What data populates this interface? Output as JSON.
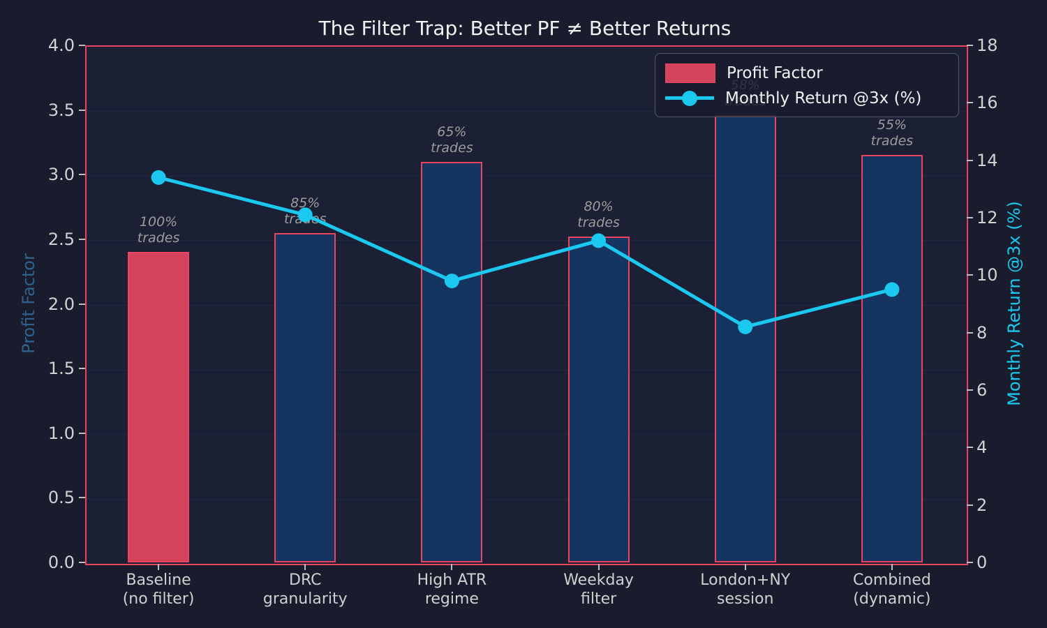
{
  "chart_data": {
    "type": "bar+line",
    "title": "The Filter Trap: Better PF ≠ Better Returns",
    "categories": [
      {
        "line1": "Baseline",
        "line2": "(no filter)"
      },
      {
        "line1": "DRC",
        "line2": "granularity"
      },
      {
        "line1": "High ATR",
        "line2": "regime"
      },
      {
        "line1": "Weekday",
        "line2": "filter"
      },
      {
        "line1": "London+NY",
        "line2": "session"
      },
      {
        "line1": "Combined",
        "line2": "(dynamic)"
      }
    ],
    "series": [
      {
        "name": "Profit Factor",
        "type": "bar",
        "axis": "left",
        "values": [
          2.4,
          2.55,
          3.1,
          2.52,
          3.46,
          3.15
        ]
      },
      {
        "name": "Monthly Return @3x (%)",
        "type": "line",
        "axis": "right",
        "values": [
          13.4,
          12.1,
          9.8,
          11.2,
          8.2,
          9.5
        ]
      }
    ],
    "annotations": [
      {
        "pct": "100%",
        "word": "trades"
      },
      {
        "pct": "85%",
        "word": "trades"
      },
      {
        "pct": "65%",
        "word": "trades"
      },
      {
        "pct": "80%",
        "word": "trades"
      },
      {
        "pct": "58%",
        "word": "trades"
      },
      {
        "pct": "55%",
        "word": "trades"
      }
    ],
    "left_axis": {
      "label": "Profit Factor",
      "min": 0,
      "max": 4,
      "ticks": [
        "0.0",
        "0.5",
        "1.0",
        "1.5",
        "2.0",
        "2.5",
        "3.0",
        "3.5",
        "4.0"
      ]
    },
    "right_axis": {
      "label": "Monthly Return @3x (%)",
      "min": 0,
      "max": 18,
      "ticks": [
        "0",
        "2",
        "4",
        "6",
        "8",
        "10",
        "12",
        "14",
        "16",
        "18"
      ]
    },
    "legend": {
      "position": "upper right",
      "entries": [
        {
          "label": "Profit Factor",
          "marker": "patch"
        },
        {
          "label": "Monthly Return @3x (%)",
          "marker": "line-dot"
        }
      ]
    },
    "grid": "horizontal, subtle",
    "colors": {
      "figure_bg": "#181c2d",
      "plot_bg": "#1b2034",
      "spine": "#e94560",
      "bar_fill": "#153560",
      "bar_edge": "#e94560",
      "baseline_bar_fill": "#d4425c",
      "line": "#1ac8f0",
      "annotation_text": "#9c9c9c",
      "tick_text": "#d2d2d2",
      "left_label_text": "#2f618f",
      "title_text": "#f2f2f2"
    }
  }
}
